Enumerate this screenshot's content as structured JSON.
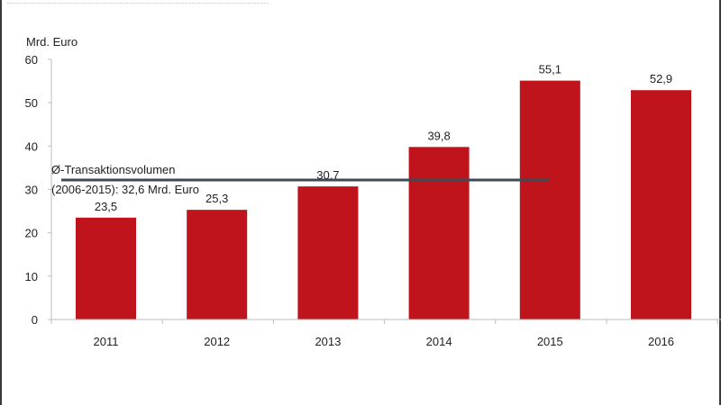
{
  "chart": {
    "unit_label": "Mrd. Euro",
    "avg_label_line1": "Ø-Transaktionsvolumen",
    "avg_label_line2": "(2006-2015): 32,6 Mrd. Euro",
    "bar_color": "#C0141C",
    "avg_line_color": "#3E4A55"
  },
  "chart_data": {
    "type": "bar",
    "title": "",
    "xlabel": "",
    "ylabel": "Mrd. Euro",
    "categories": [
      "2011",
      "2012",
      "2013",
      "2014",
      "2015",
      "2016"
    ],
    "values": [
      23.5,
      25.3,
      30.7,
      39.8,
      55.1,
      52.9
    ],
    "value_labels": [
      "23,5",
      "25,3",
      "30,7",
      "39,8",
      "55,1",
      "52,9"
    ],
    "ylim": [
      0,
      60
    ],
    "yticks": [
      0,
      10,
      20,
      30,
      40,
      50,
      60
    ],
    "grid": false,
    "legend": null,
    "annotations": [
      {
        "type": "hline",
        "y": 32.6,
        "x_from": "2011",
        "x_to": "2015",
        "label": "Ø-Transaktionsvolumen (2006-2015): 32,6 Mrd. Euro"
      }
    ]
  }
}
